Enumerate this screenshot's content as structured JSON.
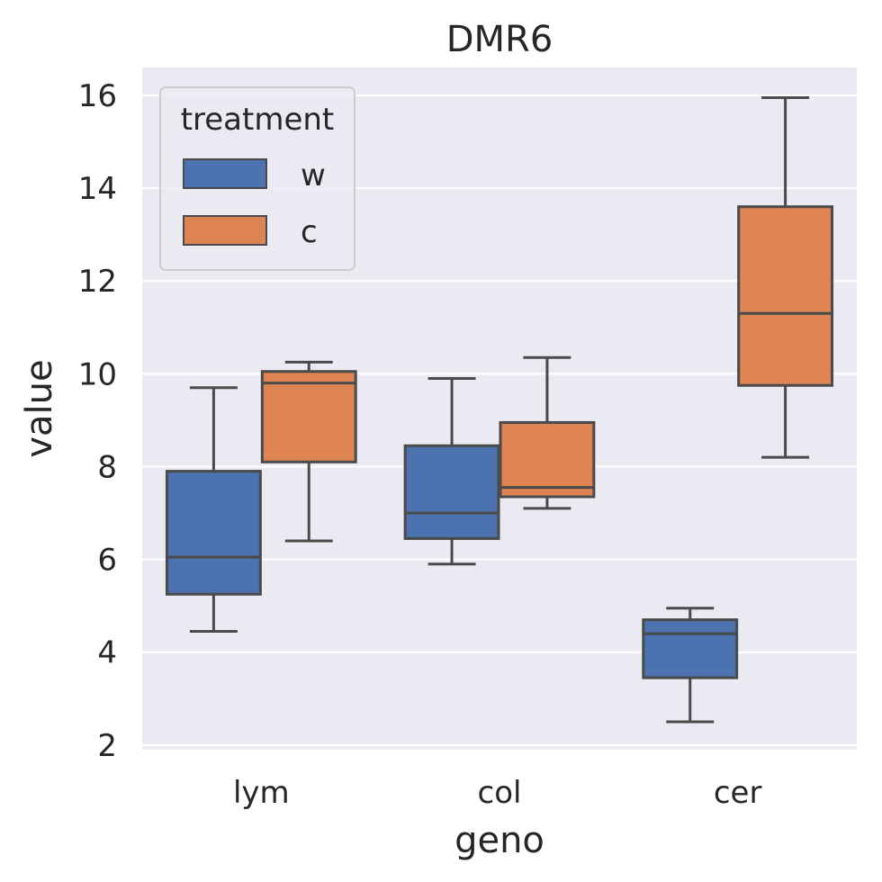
{
  "chart_data": {
    "type": "box",
    "title": "DMR6",
    "xlabel": "geno",
    "ylabel": "value",
    "categories": [
      "lym",
      "col",
      "cer"
    ],
    "ylim": [
      1.9,
      16.6
    ],
    "yticks": [
      2,
      4,
      6,
      8,
      10,
      12,
      14,
      16
    ],
    "grid": true,
    "legend": {
      "title": "treatment",
      "position": "upper-left"
    },
    "series": [
      {
        "name": "w",
        "color": "#4c72b0",
        "boxes": [
          {
            "category": "lym",
            "whisker_low": 4.45,
            "q1": 5.25,
            "median": 6.05,
            "q3": 7.9,
            "whisker_high": 9.7
          },
          {
            "category": "col",
            "whisker_low": 5.9,
            "q1": 6.45,
            "median": 7.0,
            "q3": 8.45,
            "whisker_high": 9.9
          },
          {
            "category": "cer",
            "whisker_low": 2.5,
            "q1": 3.45,
            "median": 4.4,
            "q3": 4.7,
            "whisker_high": 4.95
          }
        ]
      },
      {
        "name": "c",
        "color": "#dd8452",
        "boxes": [
          {
            "category": "lym",
            "whisker_low": 6.4,
            "q1": 8.1,
            "median": 9.8,
            "q3": 10.05,
            "whisker_high": 10.25
          },
          {
            "category": "col",
            "whisker_low": 7.1,
            "q1": 7.35,
            "median": 7.55,
            "q3": 8.95,
            "whisker_high": 10.35
          },
          {
            "category": "cer",
            "whisker_low": 8.2,
            "q1": 9.75,
            "median": 11.3,
            "q3": 13.6,
            "whisker_high": 15.95
          }
        ]
      }
    ]
  }
}
